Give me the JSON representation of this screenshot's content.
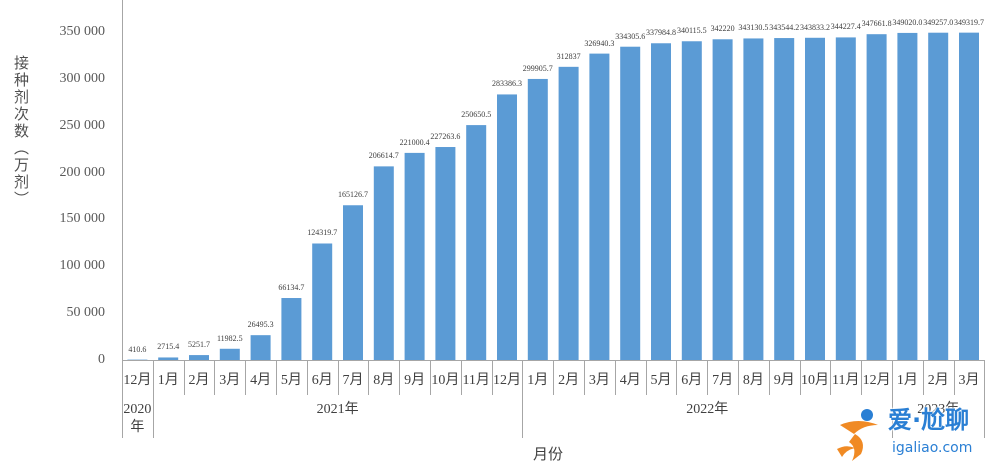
{
  "chart_data": {
    "type": "bar",
    "xlabel": "月份",
    "ylabel": "接种剂次数（万剂）",
    "ylim": [
      0,
      350000
    ],
    "yticks": [
      0,
      50000,
      100000,
      150000,
      200000,
      250000,
      300000,
      350000
    ],
    "ytick_labels": [
      "0",
      "50 000",
      "100 000",
      "150 000",
      "200 000",
      "250 000",
      "300 000",
      "350 000"
    ],
    "grid": false,
    "bar_color": "#5B9BD5",
    "category_groups": [
      {
        "label": "2020年",
        "categories": [
          "12月"
        ]
      },
      {
        "label": "2021年",
        "categories": [
          "1月",
          "2月",
          "3月",
          "4月",
          "5月",
          "6月",
          "7月",
          "8月",
          "9月",
          "10月",
          "11月",
          "12月"
        ]
      },
      {
        "label": "2022年",
        "categories": [
          "1月",
          "2月",
          "3月",
          "4月",
          "5月",
          "6月",
          "7月",
          "8月",
          "9月",
          "10月",
          "11月",
          "12月"
        ]
      },
      {
        "label": "2023年",
        "categories": [
          "1月",
          "2月",
          "3月"
        ]
      }
    ],
    "values": [
      410.6,
      2715.4,
      5251.7,
      11982.5,
      26495.3,
      66134.7,
      124319.7,
      165126.7,
      206614.7,
      221000.4,
      227263.6,
      250650.5,
      283386.3,
      299905.7,
      312837,
      326940.3,
      334305.6,
      337984.8,
      340115.5,
      342220,
      343130.5,
      343544.2,
      343833.2,
      344227.4,
      347661.8,
      349020.0,
      349257.0,
      349319.7
    ],
    "data_labels": [
      "410.6",
      "2715.4",
      "5251.7",
      "11982.5",
      "26495.3",
      "66134.7",
      "124319.7",
      "165126.7",
      "206614.7",
      "221000.4",
      "227263.6",
      "250650.5",
      "283386.3",
      "299905.7",
      "312837",
      "326940.3",
      "334305.6",
      "337984.8",
      "340115.5",
      "342220",
      "343130.5",
      "343544.2",
      "343833.2",
      "344227.4",
      "347661.8",
      "349020.0",
      "349257.0",
      "349319.7"
    ]
  },
  "watermark": {
    "brand": "爱·尬聊",
    "site": "igaliao.com",
    "text_color": "#2A7FD4",
    "logo_color": "#F08A24",
    "logo_icon": "running-figure-logo-icon"
  }
}
